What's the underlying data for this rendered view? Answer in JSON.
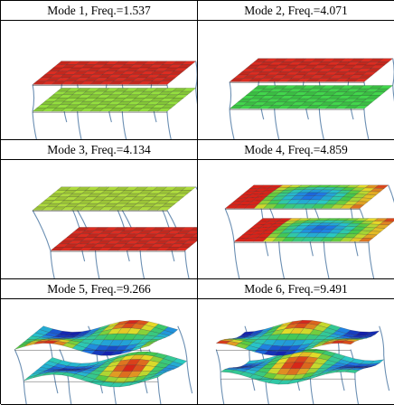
{
  "modes": [
    {
      "caption": "Mode 1, Freq.=1.537",
      "top_slab": "uniform",
      "top_color": "#d42a20",
      "bottom_slab": "uniform",
      "bottom_color": "#8ed63c"
    },
    {
      "caption": "Mode 2, Freq.=4.071",
      "top_slab": "uniform",
      "top_color": "#d42a20",
      "bottom_slab": "uniform",
      "bottom_color": "#3fcf49"
    },
    {
      "caption": "Mode 3, Freq.=4.134",
      "top_slab": "uniform",
      "top_color": "#a8d43c",
      "bottom_slab": "uniform",
      "bottom_color": "#d42a20"
    },
    {
      "caption": "Mode 4, Freq.=4.859",
      "top_slab": "contour",
      "bottom_slab": "contour"
    },
    {
      "caption": "Mode 5, Freq.=9.266",
      "top_slab": "wave",
      "bottom_slab": "wave"
    },
    {
      "caption": "Mode 6, Freq.=9.491",
      "top_slab": "wave",
      "bottom_slab": "wave"
    }
  ]
}
